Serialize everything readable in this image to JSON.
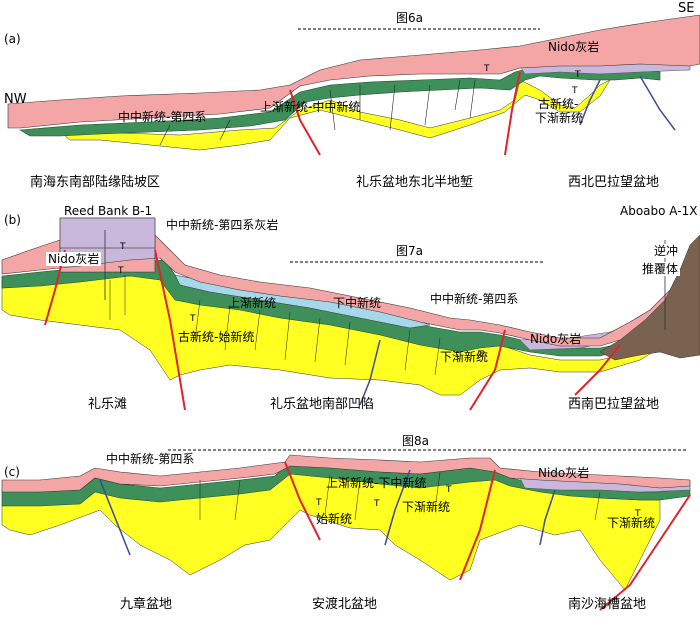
{
  "panels": {
    "a": {
      "tag": "(a)",
      "nw": "NW",
      "se": "SE",
      "fig_ref": "图6a",
      "labels": {
        "mid_neogene_quaternary": "中中新统-第四系",
        "upper_oligocene_mid_miocene": "上渐新统-中中新统",
        "nido_limestone": "Nido灰岩",
        "paleogene_lower_oligocene_1": "古新统-",
        "paleogene_lower_oligocene_2": "下渐新统",
        "t_upper": "T",
        "t_right1": "T",
        "t_right2": "T"
      },
      "regions": [
        "南海东南部陆缘陆坡区",
        "礼乐盆地东北半地堑",
        "西北巴拉望盆地"
      ]
    },
    "b": {
      "tag": "(b)",
      "fig_ref": "图7a",
      "labels": {
        "reed_bank": "Reed Bank B-1",
        "aboabo": "Aboabo A-1X",
        "mid_neogene_limestone": "中中新统-第四系灰岩",
        "nido_limestone_left": "Nido灰岩",
        "nido_limestone_right": "Nido灰岩",
        "upper_oligocene": "上渐新统",
        "lower_miocene": "下中新统",
        "mid_neogene_quaternary": "中中新统-第四系",
        "paleocene_eocene": "古新统-始新统",
        "lower_oligocene": "下渐新统",
        "thrust_1": "逆冲",
        "thrust_2": "推覆体",
        "t_a": "T",
        "t_b": "T",
        "t_c": "T",
        "t_d": "T"
      },
      "regions": [
        "礼乐滩",
        "礼乐盆地南部凹陷",
        "西南巴拉望盆地"
      ]
    },
    "c": {
      "tag": "(c)",
      "fig_ref": "图8a",
      "labels": {
        "mid_neogene_quaternary": "中中新统-第四系",
        "upper_oligo_mid_miocene": "上渐新统-下中新统",
        "eocene": "始新统",
        "lower_oligocene_mid": "下渐新统",
        "nido_limestone": "Nido灰岩",
        "lower_oligocene_right": "下渐新统",
        "t_a": "T",
        "t_b": "T",
        "t_c": "T",
        "t_d": "T"
      },
      "regions": [
        "九章盆地",
        "安渡北盆地",
        "南沙海槽盆地"
      ]
    }
  },
  "colors": {
    "sea_pink": "#f4a6a6",
    "green": "#3e8f5a",
    "yellow": "#ffff22",
    "purple": "#c9b8dc",
    "lightblue": "#a6d8ea",
    "brown": "#7a6250",
    "fault_red": "#e0222c",
    "fault_blue": "#3a4a9a"
  }
}
